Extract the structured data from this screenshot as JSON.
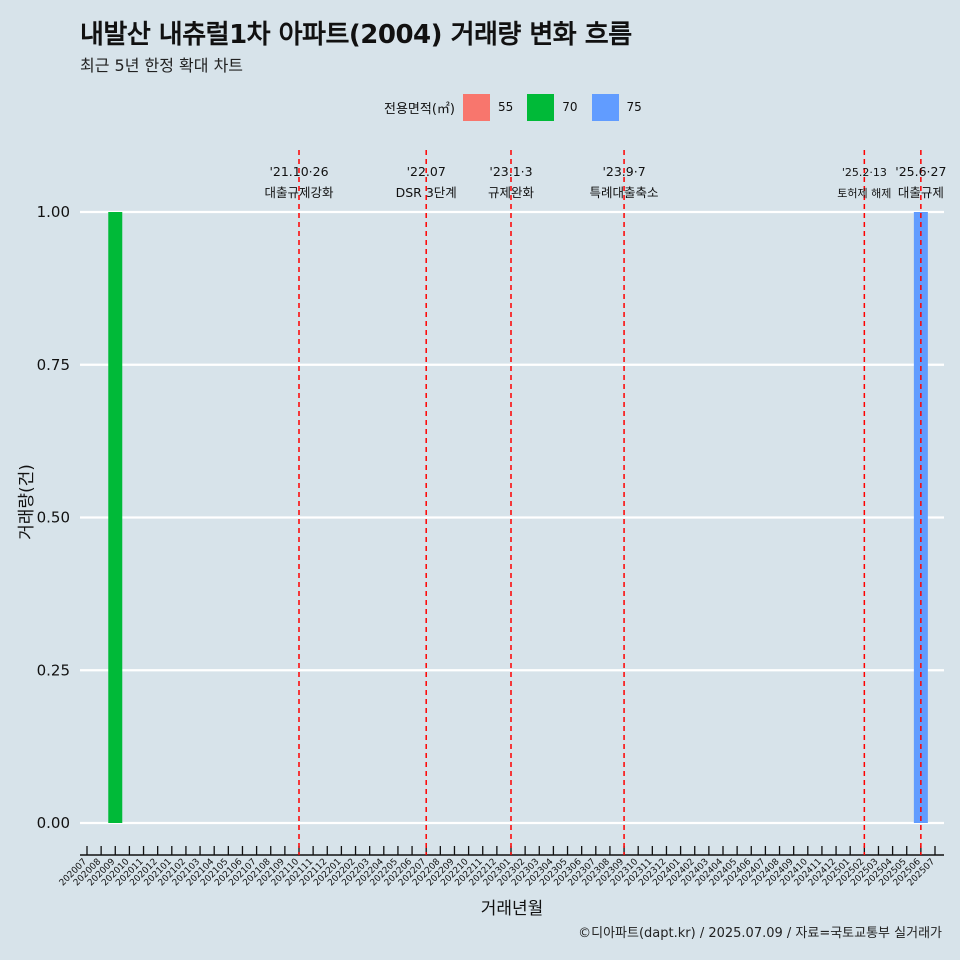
{
  "title": "내발산 내츄럴1차 아파트(2004) 거래량 변화 흐름",
  "subtitle": "최근 5년 한정 확대 차트",
  "caption": "©디아파트(dapt.kr) / 2025.07.09 / 자료=국토교통부 실거래가",
  "legend": {
    "title": "전용면적(㎡)",
    "items": [
      {
        "label": "55",
        "color": "#f8766d"
      },
      {
        "label": "70",
        "color": "#00ba38"
      },
      {
        "label": "75",
        "color": "#619cff"
      }
    ]
  },
  "chart_data": {
    "type": "bar",
    "xlabel": "거래년월",
    "ylabel": "거래량(건)",
    "ylim": [
      0,
      1
    ],
    "y_ticks": [
      "0.00",
      "0.25",
      "0.50",
      "0.75",
      "1.00"
    ],
    "grid": "horizontal",
    "legend_position": "top",
    "categories": [
      "202007",
      "202008",
      "202009",
      "202010",
      "202011",
      "202012",
      "202101",
      "202102",
      "202103",
      "202104",
      "202105",
      "202106",
      "202107",
      "202108",
      "202109",
      "202110",
      "202111",
      "202112",
      "202201",
      "202202",
      "202203",
      "202204",
      "202205",
      "202206",
      "202207",
      "202208",
      "202209",
      "202210",
      "202211",
      "202212",
      "202301",
      "202302",
      "202303",
      "202304",
      "202305",
      "202306",
      "202307",
      "202308",
      "202309",
      "202310",
      "202311",
      "202312",
      "202401",
      "202402",
      "202403",
      "202404",
      "202405",
      "202406",
      "202407",
      "202408",
      "202409",
      "202410",
      "202411",
      "202412",
      "202501",
      "202502",
      "202503",
      "202504",
      "202505",
      "202506",
      "202507"
    ],
    "series": [
      {
        "name": "70",
        "color": "#00ba38",
        "points": [
          {
            "x": "202009",
            "y": 1
          }
        ]
      },
      {
        "name": "75",
        "color": "#619cff",
        "points": [
          {
            "x": "202506",
            "y": 1
          }
        ]
      }
    ],
    "events": [
      {
        "x": "202110",
        "date": "'21.10·26",
        "label": "대출규제강화"
      },
      {
        "x": "202207",
        "date": "'22.07",
        "label": "DSR 3단계"
      },
      {
        "x": "202301",
        "date": "'23.1·3",
        "label": "규제완화"
      },
      {
        "x": "202309",
        "date": "'23.9·7",
        "label": "특례대출축소"
      },
      {
        "x": "202502",
        "date": "'25.2·13",
        "label": "토허제 해제"
      },
      {
        "x": "202506",
        "date": "'25.6·27",
        "label": "대출규제"
      }
    ]
  }
}
